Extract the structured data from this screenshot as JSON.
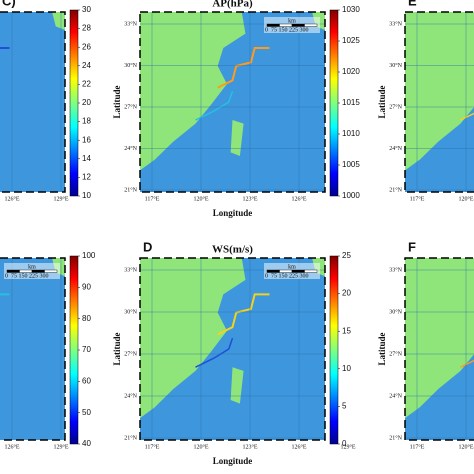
{
  "panels": [
    {
      "letter": "C)",
      "colorbar_ticks": [
        30,
        28,
        26,
        24,
        22,
        20,
        18,
        16,
        14,
        12,
        10
      ],
      "lon_ticks": [
        "126°E",
        "129°E"
      ]
    },
    {
      "title": "AP(hPa)",
      "colorbar_ticks": [
        1030,
        1025,
        1020,
        1015,
        1010,
        1005,
        1000
      ],
      "lat_ticks": [
        "33°N",
        "30°N",
        "27°N",
        "24°N",
        "21°N"
      ],
      "lon_ticks": [
        "117°E",
        "120°E",
        "123°E",
        "126°E"
      ],
      "x_label": "Longitude",
      "y_label": "Latitude",
      "scale_unit": "km",
      "scale_labels": "0  75 150 225 300"
    },
    {
      "letter": "E",
      "lat_ticks": [
        "33°N",
        "30°N",
        "27°N",
        "24°N",
        "21°N"
      ],
      "lon_ticks": [
        "117°E",
        "120°E"
      ],
      "y_label": "Latitude"
    },
    {
      "colorbar_ticks": [
        100,
        90,
        80,
        70,
        60,
        50,
        40
      ],
      "lon_ticks": [
        "126°E",
        "129°E"
      ],
      "scale_unit": "km",
      "scale_labels": "0  75 150 225 300"
    },
    {
      "letter": "D",
      "title": "WS(m/s)",
      "colorbar_ticks": [
        25,
        20,
        15,
        10,
        5,
        0
      ],
      "lat_ticks": [
        "33°N",
        "30°N",
        "27°N",
        "24°N",
        "21°N"
      ],
      "lon_ticks": [
        "117°E",
        "120°E",
        "123°E",
        "126°E",
        "129°E"
      ],
      "x_label": "Longitude",
      "y_label": "Latitude",
      "scale_unit": "km",
      "scale_labels": "0  75 150 225 300"
    },
    {
      "letter": "F",
      "lat_ticks": [
        "33°N",
        "30°N",
        "27°N",
        "24°N",
        "21°N"
      ],
      "lon_ticks": [
        "117°E",
        "120°E"
      ],
      "y_label": "Latitude"
    }
  ]
}
